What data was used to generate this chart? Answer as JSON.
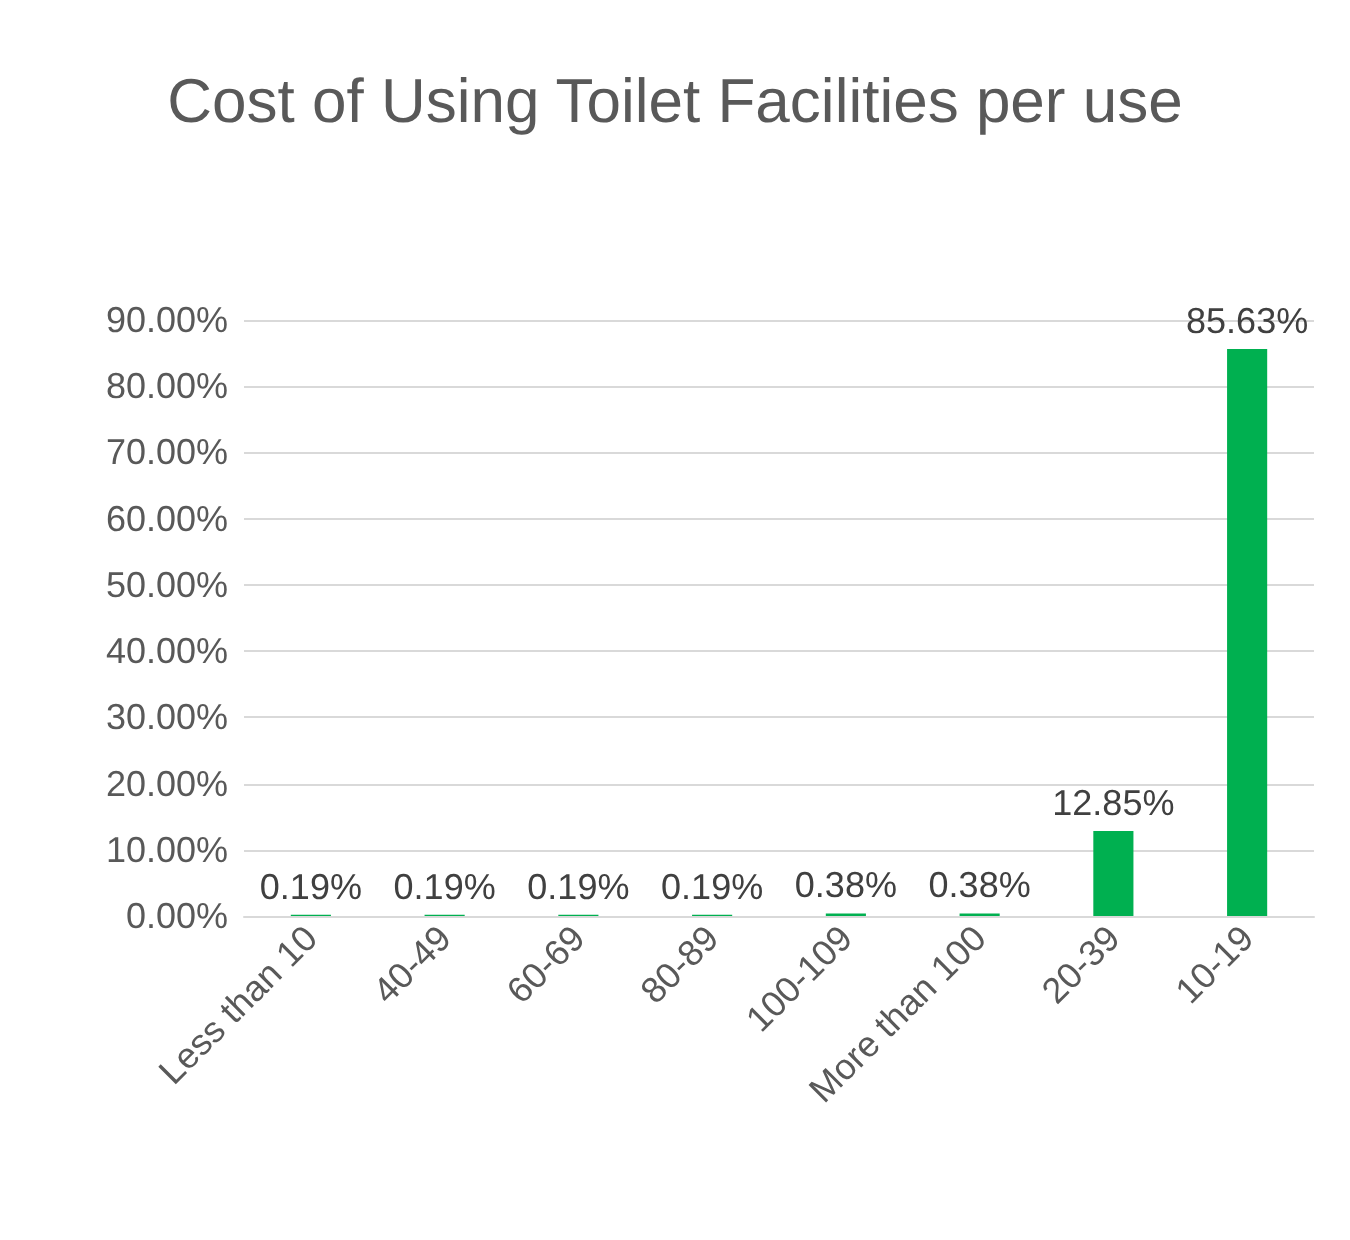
{
  "chart_data": {
    "type": "bar",
    "title": "Cost of Using Toilet Facilities per use",
    "categories": [
      "Less than 10",
      "40-49",
      "60-69",
      "80-89",
      "100-109",
      "More than 100",
      "20-39",
      "10-19"
    ],
    "values": [
      0.19,
      0.19,
      0.19,
      0.19,
      0.38,
      0.38,
      12.85,
      85.63
    ],
    "value_labels": [
      "0.19%",
      "0.19%",
      "0.19%",
      "0.19%",
      "0.38%",
      "0.38%",
      "12.85%",
      "85.63%"
    ],
    "color": "#00b050",
    "ylim": [
      0,
      90
    ],
    "yticks": [
      {
        "value": 0,
        "label": "0.00%"
      },
      {
        "value": 10,
        "label": "10.00%"
      },
      {
        "value": 20,
        "label": "20.00%"
      },
      {
        "value": 30,
        "label": "30.00%"
      },
      {
        "value": 40,
        "label": "40.00%"
      },
      {
        "value": 50,
        "label": "50.00%"
      },
      {
        "value": 60,
        "label": "60.00%"
      },
      {
        "value": 70,
        "label": "70.00%"
      },
      {
        "value": 80,
        "label": "80.00%"
      },
      {
        "value": 90,
        "label": "90.00%"
      }
    ],
    "grid": "y"
  }
}
